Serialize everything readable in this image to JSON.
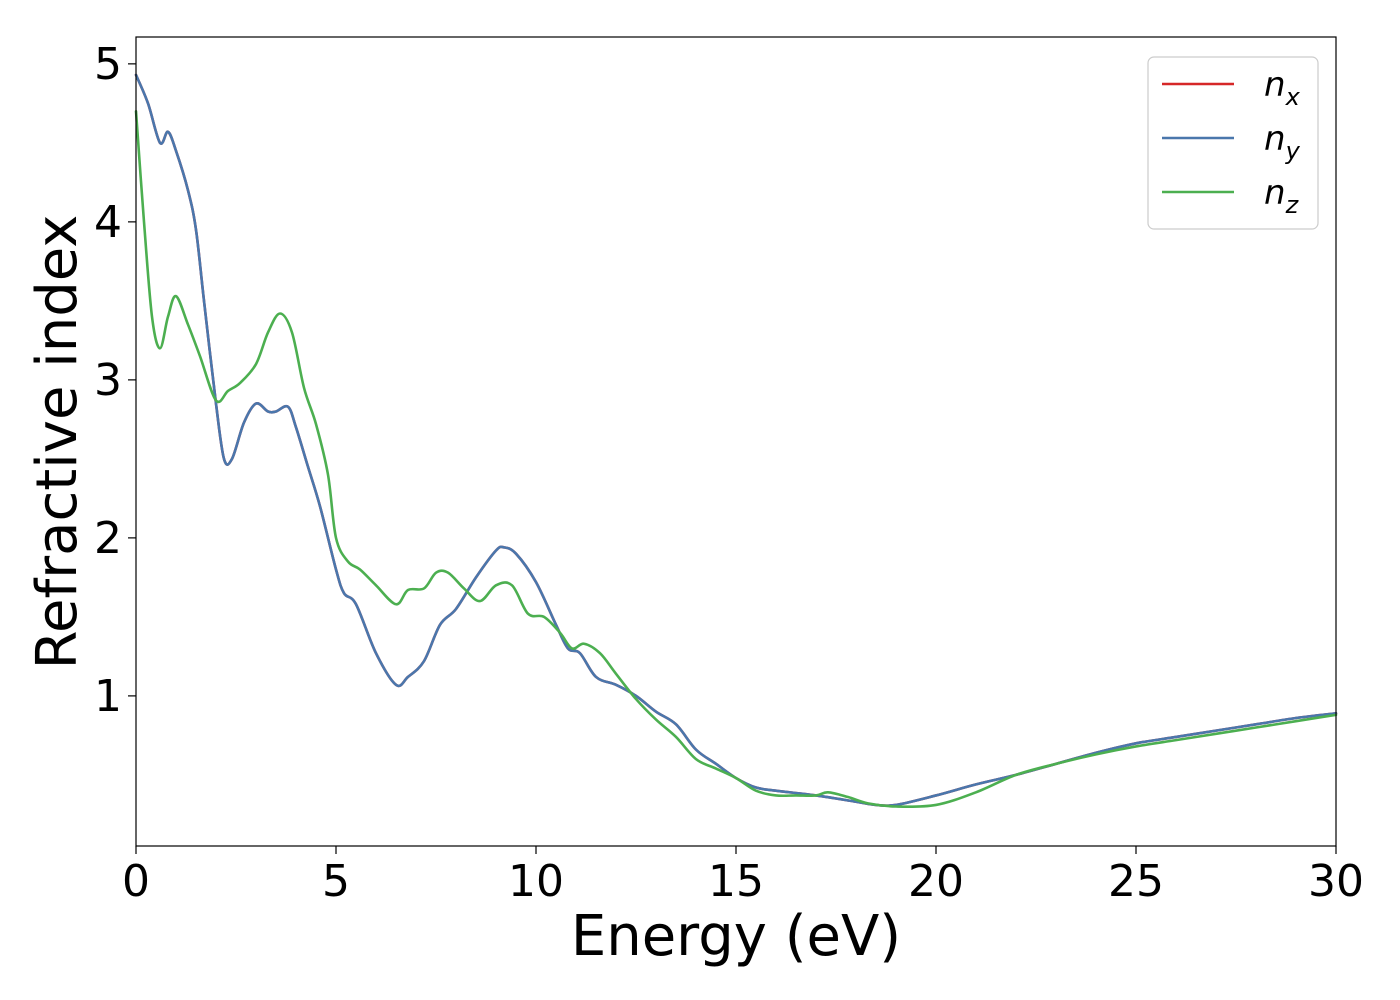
{
  "chart_data": {
    "type": "line",
    "xlabel": "Energy (eV)",
    "ylabel": "Refractive index",
    "xlim": [
      0,
      30
    ],
    "ylim": [
      0.05,
      5.17
    ],
    "xticks": [
      "0",
      "5",
      "10",
      "15",
      "20",
      "25",
      "30"
    ],
    "yticks": [
      "1",
      "2",
      "3",
      "4",
      "5"
    ],
    "grid": false,
    "legend_position": "top-right",
    "series": [
      {
        "name": "n_x",
        "label_base": "n",
        "label_sub": "x",
        "color": "#d62728",
        "x": [
          0,
          0.3,
          0.6,
          0.8,
          1.0,
          1.3,
          1.5,
          1.7,
          2.0,
          2.2,
          2.4,
          2.7,
          3.0,
          3.3,
          3.5,
          3.8,
          4.0,
          4.3,
          4.6,
          5.0,
          5.2,
          5.5,
          6.0,
          6.5,
          6.8,
          7.2,
          7.6,
          8.0,
          8.5,
          9.0,
          9.2,
          9.5,
          10.0,
          10.5,
          10.8,
          11.1,
          11.5,
          12.0,
          12.5,
          13.0,
          13.5,
          14.0,
          14.5,
          15.0,
          15.5,
          16.0,
          17.0,
          18.0,
          18.5,
          19.0,
          20.0,
          21.0,
          22.0,
          23.0,
          24.0,
          25.0,
          26.0,
          27.0,
          28.0,
          29.0,
          30.0
        ],
        "y": [
          4.93,
          4.75,
          4.5,
          4.57,
          4.45,
          4.2,
          3.95,
          3.5,
          2.85,
          2.5,
          2.5,
          2.73,
          2.85,
          2.8,
          2.8,
          2.83,
          2.7,
          2.45,
          2.2,
          1.8,
          1.65,
          1.58,
          1.27,
          1.07,
          1.12,
          1.22,
          1.45,
          1.55,
          1.75,
          1.92,
          1.94,
          1.9,
          1.72,
          1.45,
          1.3,
          1.27,
          1.12,
          1.07,
          1.0,
          0.9,
          0.82,
          0.66,
          0.57,
          0.48,
          0.42,
          0.4,
          0.37,
          0.33,
          0.31,
          0.31,
          0.37,
          0.44,
          0.5,
          0.57,
          0.64,
          0.7,
          0.74,
          0.78,
          0.82,
          0.86,
          0.89
        ]
      },
      {
        "name": "n_y",
        "label_base": "n",
        "label_sub": "y",
        "color": "#4a77ac",
        "x": [
          0,
          0.3,
          0.6,
          0.8,
          1.0,
          1.3,
          1.5,
          1.7,
          2.0,
          2.2,
          2.4,
          2.7,
          3.0,
          3.3,
          3.5,
          3.8,
          4.0,
          4.3,
          4.6,
          5.0,
          5.2,
          5.5,
          6.0,
          6.5,
          6.8,
          7.2,
          7.6,
          8.0,
          8.5,
          9.0,
          9.2,
          9.5,
          10.0,
          10.5,
          10.8,
          11.1,
          11.5,
          12.0,
          12.5,
          13.0,
          13.5,
          14.0,
          14.5,
          15.0,
          15.5,
          16.0,
          17.0,
          18.0,
          18.5,
          19.0,
          20.0,
          21.0,
          22.0,
          23.0,
          24.0,
          25.0,
          26.0,
          27.0,
          28.0,
          29.0,
          30.0
        ],
        "y": [
          4.93,
          4.75,
          4.5,
          4.57,
          4.45,
          4.2,
          3.95,
          3.5,
          2.85,
          2.5,
          2.5,
          2.73,
          2.85,
          2.8,
          2.8,
          2.83,
          2.7,
          2.45,
          2.2,
          1.8,
          1.65,
          1.58,
          1.27,
          1.07,
          1.12,
          1.22,
          1.45,
          1.55,
          1.75,
          1.92,
          1.94,
          1.9,
          1.72,
          1.45,
          1.3,
          1.27,
          1.12,
          1.07,
          1.0,
          0.9,
          0.82,
          0.66,
          0.57,
          0.48,
          0.42,
          0.4,
          0.37,
          0.33,
          0.31,
          0.31,
          0.37,
          0.44,
          0.5,
          0.57,
          0.64,
          0.7,
          0.74,
          0.78,
          0.82,
          0.86,
          0.89
        ]
      },
      {
        "name": "n_z",
        "label_base": "n",
        "label_sub": "z",
        "color": "#4caf50",
        "x": [
          0,
          0.2,
          0.4,
          0.6,
          0.8,
          1.0,
          1.3,
          1.6,
          2.0,
          2.3,
          2.6,
          3.0,
          3.3,
          3.6,
          3.9,
          4.2,
          4.5,
          4.8,
          5.0,
          5.3,
          5.6,
          6.0,
          6.5,
          6.8,
          7.2,
          7.5,
          7.8,
          8.2,
          8.6,
          9.0,
          9.4,
          9.8,
          10.2,
          10.6,
          10.9,
          11.2,
          11.6,
          12.0,
          12.5,
          13.0,
          13.5,
          14.0,
          14.5,
          15.0,
          15.5,
          16.0,
          16.5,
          17.0,
          17.3,
          17.8,
          18.3,
          19.0,
          20.0,
          21.0,
          22.0,
          23.0,
          24.0,
          25.0,
          26.0,
          27.0,
          28.0,
          29.0,
          30.0
        ],
        "y": [
          4.7,
          4.0,
          3.4,
          3.2,
          3.4,
          3.53,
          3.35,
          3.15,
          2.87,
          2.93,
          2.98,
          3.1,
          3.3,
          3.42,
          3.3,
          2.95,
          2.72,
          2.4,
          2.0,
          1.85,
          1.8,
          1.7,
          1.58,
          1.67,
          1.68,
          1.78,
          1.78,
          1.68,
          1.6,
          1.7,
          1.7,
          1.52,
          1.5,
          1.4,
          1.3,
          1.33,
          1.27,
          1.14,
          0.98,
          0.85,
          0.74,
          0.6,
          0.54,
          0.48,
          0.4,
          0.37,
          0.37,
          0.37,
          0.39,
          0.36,
          0.32,
          0.3,
          0.31,
          0.39,
          0.5,
          0.57,
          0.63,
          0.68,
          0.72,
          0.76,
          0.8,
          0.84,
          0.88
        ]
      }
    ]
  }
}
